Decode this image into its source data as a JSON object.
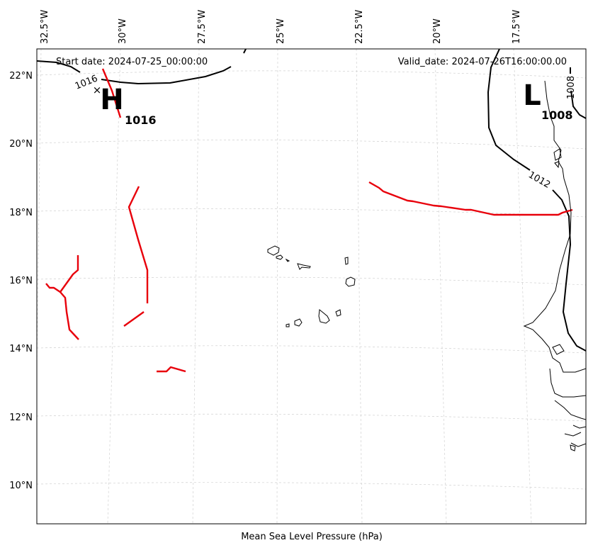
{
  "header": {
    "start_date": "Start date: 2024-07-25_00:00:00",
    "valid_date": "Valid_date: 2024-07-26T16:00:00.00"
  },
  "caption": "Mean Sea Level Pressure (hPa)",
  "axes": {
    "longitude_labels": [
      "32.5°W",
      "30°W",
      "27.5°W",
      "25°W",
      "22.5°W",
      "20°W",
      "17.5°W"
    ],
    "latitude_labels": [
      "22°N",
      "20°N",
      "18°N",
      "16°N",
      "14°N",
      "12°N",
      "10°N"
    ],
    "gridlines": true
  },
  "pressure_centers": [
    {
      "type": "High",
      "symbol": "H",
      "value": "1016",
      "marker": "×"
    },
    {
      "type": "Low",
      "symbol": "L",
      "value": "1008"
    }
  ],
  "isobar_labels": [
    "1016",
    "1012",
    "1008"
  ],
  "colors": {
    "isobar": "#000000",
    "front_line": "#e8000b",
    "gridline": "#cccccc",
    "coastline": "#000000"
  }
}
